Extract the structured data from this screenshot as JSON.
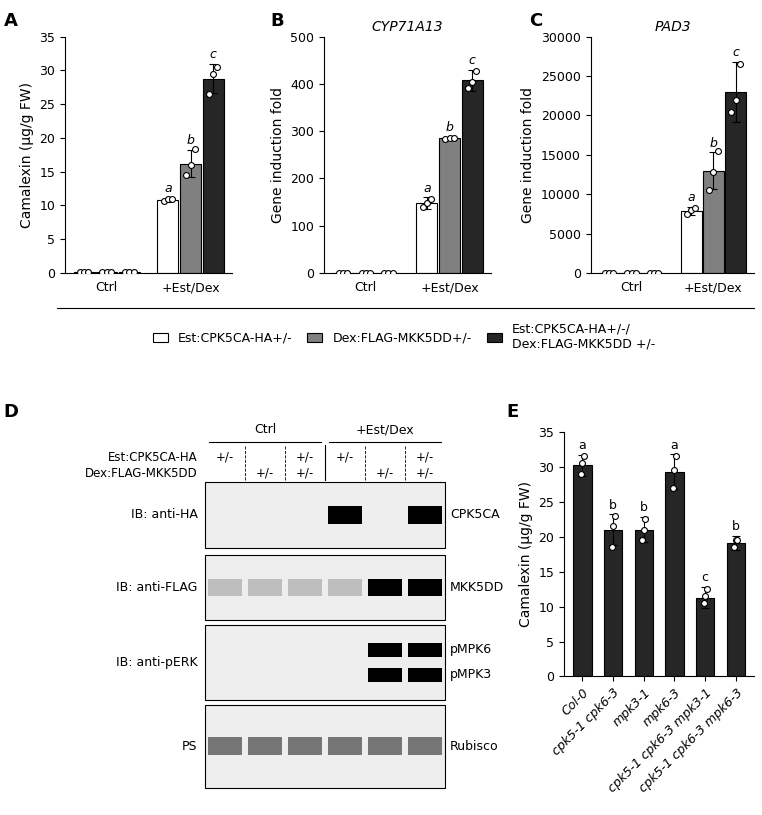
{
  "chart_data": [
    {
      "panel": "A",
      "type": "bar",
      "y_label": "Camalexin (μg/g FW)",
      "categories": [
        "Ctrl",
        "+Est/Dex"
      ],
      "ylim": [
        0,
        35
      ],
      "yticks": [
        0,
        5,
        10,
        15,
        20,
        25,
        30,
        35
      ],
      "legend": "upper center",
      "series": [
        {
          "name": "Est:CPK5CA-HA+/-",
          "color": "#ffffff",
          "values": [
            0.2,
            10.8
          ],
          "errors": [
            0.05,
            0.3
          ],
          "letters": [
            null,
            "a"
          ],
          "points": [
            [
              0.2,
              0.2,
              0.2
            ],
            [
              10.6,
              10.9,
              11.0
            ]
          ]
        },
        {
          "name": "Dex:FLAG-MKK5DD+/-",
          "color": "#808080",
          "values": [
            0.2,
            16.2
          ],
          "errors": [
            0.05,
            2.0
          ],
          "letters": [
            null,
            "b"
          ],
          "points": [
            [
              0.2,
              0.2,
              0.2
            ],
            [
              14.5,
              16.0,
              18.3
            ]
          ]
        },
        {
          "name": "Est:CPK5CA-HA+/-/\nDex:FLAG-MKK5DD +/-",
          "color": "#262626",
          "values": [
            0.2,
            28.8
          ],
          "errors": [
            0.05,
            2.2
          ],
          "letters": [
            null,
            "c"
          ],
          "points": [
            [
              0.2,
              0.2,
              0.2
            ],
            [
              26.5,
              29.5,
              30.5
            ]
          ]
        }
      ]
    },
    {
      "panel": "B",
      "type": "bar",
      "title": "CYP71A13",
      "y_label": "Gene induction fold",
      "categories": [
        "Ctrl",
        "+Est/Dex"
      ],
      "ylim": [
        0,
        500
      ],
      "yticks": [
        0,
        100,
        200,
        300,
        400,
        500
      ],
      "series": [
        {
          "name": "Est:CPK5CA-HA+/-",
          "color": "#ffffff",
          "values": [
            1,
            148
          ],
          "errors": [
            0.2,
            12
          ],
          "letters": [
            null,
            "a"
          ],
          "points": [
            [
              1,
              1,
              1
            ],
            [
              140,
              148,
              157
            ]
          ]
        },
        {
          "name": "Dex:FLAG-MKK5DD+/-",
          "color": "#808080",
          "values": [
            1,
            285
          ],
          "errors": [
            0.2,
            3
          ],
          "letters": [
            null,
            "b"
          ],
          "points": [
            [
              1,
              1,
              1
            ],
            [
              284,
              285,
              286
            ]
          ]
        },
        {
          "name": "Est:CPK5CA-HA+/-/\nDex:FLAG-MKK5DD +/-",
          "color": "#262626",
          "values": [
            1,
            408
          ],
          "errors": [
            0.2,
            22
          ],
          "letters": [
            null,
            "c"
          ],
          "points": [
            [
              1,
              1,
              1
            ],
            [
              392,
              405,
              428
            ]
          ]
        }
      ]
    },
    {
      "panel": "C",
      "type": "bar",
      "title": "PAD3",
      "y_label": "Gene induction fold",
      "categories": [
        "Ctrl",
        "+Est/Dex"
      ],
      "ylim": [
        0,
        30000
      ],
      "yticks": [
        0,
        5000,
        10000,
        15000,
        20000,
        25000,
        30000
      ],
      "series": [
        {
          "name": "Est:CPK5CA-HA+/-",
          "color": "#ffffff",
          "values": [
            1,
            7900
          ],
          "errors": [
            0.2,
            500
          ],
          "letters": [
            null,
            "a"
          ],
          "points": [
            [
              1,
              1,
              1
            ],
            [
              7500,
              8000,
              8200
            ]
          ]
        },
        {
          "name": "Dex:FLAG-MKK5DD+/-",
          "color": "#808080",
          "values": [
            1,
            13000
          ],
          "errors": [
            0.2,
            2300
          ],
          "letters": [
            null,
            "b"
          ],
          "points": [
            [
              1,
              1,
              1
            ],
            [
              10500,
              12800,
              15500
            ]
          ]
        },
        {
          "name": "Est:CPK5CA-HA+/-/\nDex:FLAG-MKK5DD +/-",
          "color": "#262626",
          "values": [
            1,
            23000
          ],
          "errors": [
            0.2,
            3800
          ],
          "letters": [
            null,
            "c"
          ],
          "points": [
            [
              1,
              1,
              1
            ],
            [
              20500,
              22000,
              26500
            ]
          ]
        }
      ]
    },
    {
      "panel": "E",
      "type": "bar",
      "y_label": "Camalexin (μg/g FW)",
      "categories": [
        "Col-0",
        "cpk5-1 cpk6-3",
        "mpk3-1",
        "mpk6-3",
        "cpk5-1 cpk6-3 mpk3-1",
        "cpk5-1 cpk6-3 mpk6-3"
      ],
      "ylim": [
        0,
        35
      ],
      "yticks": [
        0,
        5,
        10,
        15,
        20,
        25,
        30,
        35
      ],
      "color": "#262626",
      "values": [
        30.2,
        21.0,
        21.0,
        29.3,
        11.3,
        19.1
      ],
      "errors": [
        1.5,
        2.2,
        1.8,
        2.5,
        1.5,
        1.0
      ],
      "letters": [
        "a",
        "b",
        "b",
        "a",
        "c",
        "b"
      ],
      "points": [
        [
          29.0,
          30.5,
          31.5
        ],
        [
          18.5,
          21.5,
          23.0
        ],
        [
          19.5,
          21.0,
          22.5
        ],
        [
          27.0,
          29.5,
          31.5
        ],
        [
          10.5,
          11.5,
          12.5
        ],
        [
          18.5,
          19.5,
          19.5
        ]
      ]
    }
  ],
  "blot": {
    "panel": "D",
    "groups": [
      "Ctrl",
      "+Est/Dex"
    ],
    "genotype_rows": [
      {
        "label": "Est:CPK5CA-HA",
        "lanes": [
          "+/-",
          null,
          "+/-",
          "+/-",
          null,
          "+/-"
        ]
      },
      {
        "label": "Dex:FLAG-MKK5DD",
        "lanes": [
          null,
          "+/-",
          "+/-",
          null,
          "+/-",
          "+/-"
        ]
      }
    ],
    "rows": [
      {
        "probe": "IB: anti-HA",
        "targets": [
          "CPK5CA"
        ],
        "bands": [
          0,
          0,
          0,
          1,
          0,
          1
        ]
      },
      {
        "probe": "IB: anti-FLAG",
        "targets": [
          "MKK5DD"
        ],
        "bands": [
          0.2,
          0.2,
          0.2,
          0.2,
          1,
          1
        ]
      },
      {
        "probe": "IB: anti-pERK",
        "targets": [
          "pMPK6",
          "pMPK3"
        ],
        "bands": [
          0,
          0,
          0,
          0,
          1,
          1
        ]
      },
      {
        "probe": "PS",
        "targets": [
          "Rubisco"
        ],
        "bands": [
          0.5,
          0.5,
          0.5,
          0.5,
          0.5,
          0.5
        ]
      }
    ]
  }
}
